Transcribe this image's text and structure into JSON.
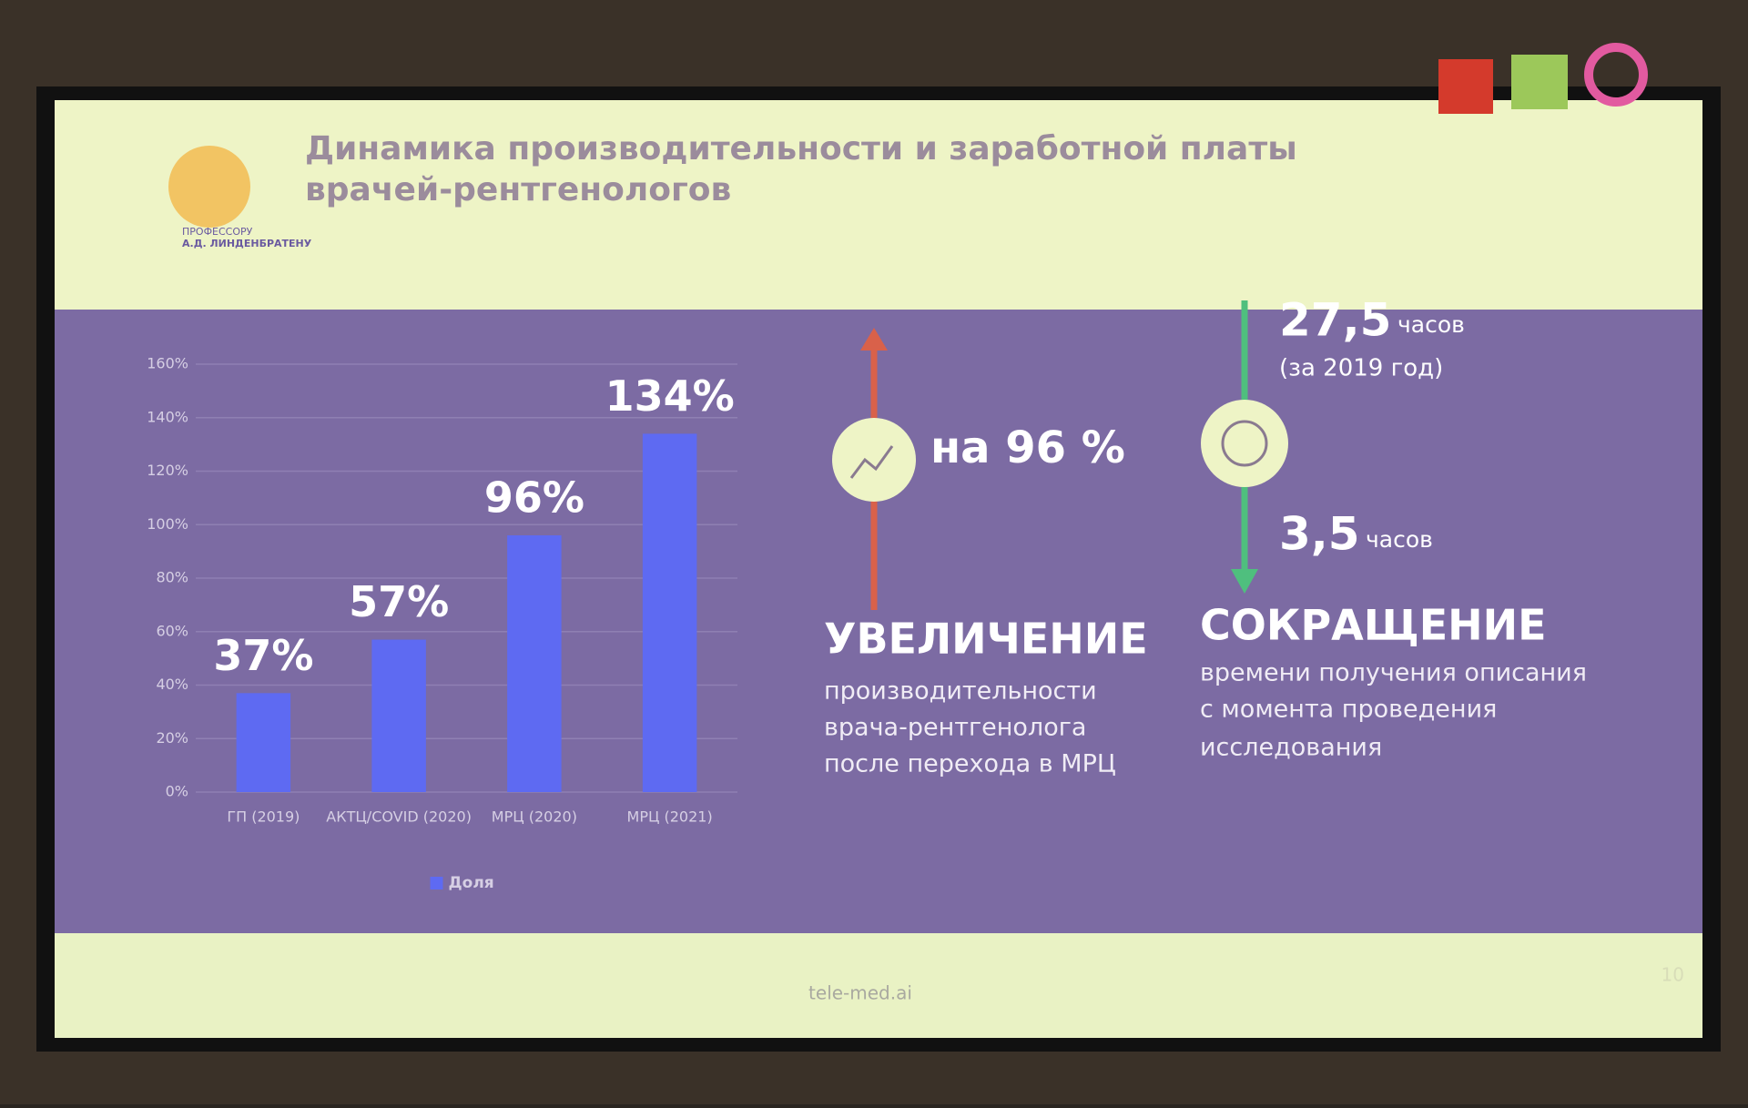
{
  "slide": {
    "title_line1": "Динамика производительности и заработной платы",
    "title_line2": "врачей-рентгенологов",
    "logo_line1": "ПРОФЕССОРУ",
    "logo_line2": "А.Д. ЛИНДЕНБРАТЕНУ",
    "increase": {
      "value_text": "на 96 %",
      "heading": "УВЕЛИЧЕНИЕ",
      "lines": [
        "производительности",
        "врача-рентгенолога",
        "после перехода в МРЦ"
      ]
    },
    "decrease": {
      "from_value": "27,5",
      "from_unit": "часов",
      "from_note": "(за 2019 год)",
      "to_value": "3,5",
      "to_unit": "часов",
      "heading": "СОКРАЩЕНИЕ",
      "lines": [
        "времени получения описания",
        "с момента проведения",
        "исследования"
      ]
    },
    "footer": "tele-med.ai",
    "page_number": "10"
  },
  "chart_data": {
    "type": "bar",
    "categories": [
      "ГП (2019)",
      "АКТЦ/COVID (2020)",
      "МРЦ (2020)",
      "МРЦ (2021)"
    ],
    "series": [
      {
        "name": "Доля",
        "color": "#5e6af2",
        "values": [
          37,
          57,
          96,
          134
        ],
        "value_labels": [
          "37%",
          "57%",
          "96%",
          "134%"
        ]
      }
    ],
    "ylim": [
      0,
      160
    ],
    "yticks": [
      {
        "value": 0,
        "label": "0%"
      },
      {
        "value": 20,
        "label": "20%"
      },
      {
        "value": 40,
        "label": "40%"
      },
      {
        "value": 60,
        "label": "60%"
      },
      {
        "value": 80,
        "label": "80%"
      },
      {
        "value": 100,
        "label": "100%"
      },
      {
        "value": 120,
        "label": "120%"
      },
      {
        "value": 140,
        "label": "140%"
      },
      {
        "value": 160,
        "label": "160%"
      }
    ],
    "grid": true,
    "legend": "bottom"
  }
}
